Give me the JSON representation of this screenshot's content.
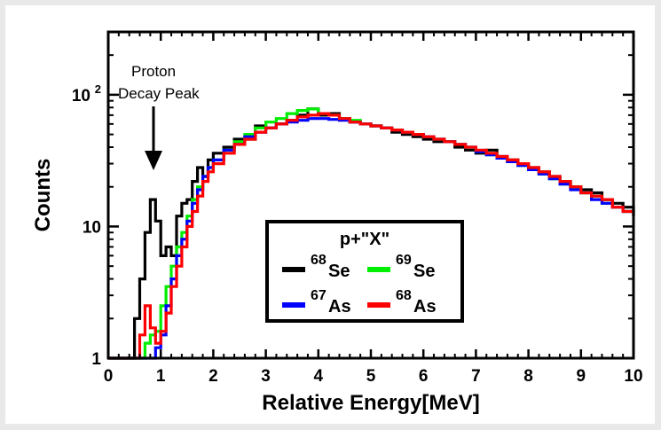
{
  "chart_data": {
    "type": "line",
    "xlabel": "Relative Energy[MeV]",
    "ylabel": "Counts",
    "xlim": [
      0,
      10
    ],
    "ylim": [
      1,
      300
    ],
    "yscale": "log",
    "xticks": [
      "0",
      "1",
      "2",
      "3",
      "4",
      "5",
      "6",
      "7",
      "8",
      "9",
      "10"
    ],
    "yticks": [
      {
        "value": 1,
        "base": "1",
        "exp": ""
      },
      {
        "value": 10,
        "base": "10",
        "exp": ""
      },
      {
        "value": 100,
        "base": "10",
        "exp": "2"
      }
    ],
    "grid": false,
    "annotation": {
      "lines": [
        "Proton",
        "Decay Peak"
      ],
      "x": 0.8,
      "y": 15
    },
    "legend": {
      "title": "p+\"X\"",
      "placement": "center-right"
    },
    "series": [
      {
        "name": "68Se",
        "mass": "68",
        "element": "Se",
        "color": "#000000",
        "x": [
          0.0,
          0.1,
          0.2,
          0.3,
          0.4,
          0.5,
          0.6,
          0.7,
          0.8,
          0.9,
          1.0,
          1.1,
          1.2,
          1.3,
          1.4,
          1.5,
          1.6,
          1.7,
          1.8,
          1.9,
          2.0,
          2.2,
          2.4,
          2.6,
          2.8,
          3.0,
          3.2,
          3.4,
          3.6,
          3.8,
          4.0,
          4.2,
          4.4,
          4.6,
          4.8,
          5.0,
          5.2,
          5.4,
          5.6,
          5.8,
          6.0,
          6.2,
          6.4,
          6.6,
          6.8,
          7.0,
          7.2,
          7.4,
          7.6,
          7.8,
          8.0,
          8.2,
          8.4,
          8.6,
          8.8,
          9.0,
          9.2,
          9.4,
          9.6,
          9.8,
          10.0
        ],
        "y": [
          1,
          1,
          1,
          1,
          1,
          2,
          4,
          9,
          16,
          11,
          6,
          7,
          6,
          12,
          15,
          16,
          22,
          28,
          24,
          32,
          36,
          40,
          46,
          46,
          58,
          56,
          60,
          64,
          70,
          78,
          70,
          72,
          66,
          62,
          60,
          58,
          56,
          52,
          50,
          48,
          46,
          44,
          44,
          40,
          38,
          36,
          38,
          34,
          32,
          30,
          28,
          26,
          24,
          22,
          20,
          19,
          18,
          16,
          15,
          14,
          13
        ]
      },
      {
        "name": "69Se",
        "mass": "69",
        "element": "Se",
        "color": "#00ee00",
        "x": [
          0.0,
          0.2,
          0.4,
          0.6,
          0.7,
          0.8,
          0.9,
          1.0,
          1.1,
          1.2,
          1.3,
          1.4,
          1.5,
          1.6,
          1.7,
          1.8,
          1.9,
          2.0,
          2.2,
          2.4,
          2.6,
          2.8,
          3.0,
          3.2,
          3.4,
          3.6,
          3.8,
          4.0,
          4.2,
          4.4,
          4.6,
          4.8,
          5.0,
          5.2,
          5.4,
          5.6,
          5.8,
          6.0,
          6.2,
          6.4,
          6.6,
          6.8,
          7.0,
          7.2,
          7.4,
          7.6,
          7.8,
          8.0,
          8.2,
          8.4,
          8.6,
          8.8,
          9.0,
          9.2,
          9.4,
          9.6,
          9.8,
          10.0
        ],
        "y": [
          1,
          1,
          1,
          1,
          1.3,
          1.5,
          1.6,
          2.5,
          3.5,
          5,
          7,
          9,
          12,
          16,
          20,
          24,
          28,
          32,
          38,
          44,
          50,
          56,
          62,
          66,
          72,
          76,
          78,
          72,
          70,
          66,
          64,
          60,
          58,
          56,
          54,
          52,
          50,
          48,
          46,
          44,
          42,
          40,
          37,
          35,
          33,
          31,
          29,
          27,
          25,
          23,
          21,
          20,
          18,
          17,
          15,
          14,
          13,
          12
        ]
      },
      {
        "name": "67As",
        "mass": "67",
        "element": "As",
        "color": "#0000ff",
        "x": [
          0.0,
          0.2,
          0.4,
          0.6,
          0.7,
          0.8,
          0.9,
          1.0,
          1.1,
          1.2,
          1.3,
          1.4,
          1.5,
          1.6,
          1.7,
          1.8,
          1.9,
          2.0,
          2.2,
          2.4,
          2.6,
          2.8,
          3.0,
          3.2,
          3.4,
          3.6,
          3.8,
          4.0,
          4.2,
          4.4,
          4.6,
          4.8,
          5.0,
          5.2,
          5.4,
          5.6,
          5.8,
          6.0,
          6.2,
          6.4,
          6.6,
          6.8,
          7.0,
          7.2,
          7.4,
          7.6,
          7.8,
          8.0,
          8.2,
          8.4,
          8.6,
          8.8,
          9.0,
          9.2,
          9.4,
          9.6,
          9.8,
          10.0
        ],
        "y": [
          1,
          1,
          1,
          1,
          1,
          1,
          1.2,
          1.5,
          2.5,
          4,
          6,
          8,
          11,
          15,
          19,
          24,
          28,
          32,
          38,
          42,
          48,
          52,
          56,
          60,
          62,
          64,
          66,
          66,
          65,
          64,
          62,
          60,
          58,
          56,
          54,
          52,
          50,
          48,
          46,
          44,
          42,
          40,
          37,
          35,
          33,
          31,
          29,
          27,
          25,
          23,
          21,
          19,
          18,
          16,
          15,
          14,
          13,
          12
        ]
      },
      {
        "name": "68As",
        "mass": "68",
        "element": "As",
        "color": "#ff0000",
        "x": [
          0.0,
          0.2,
          0.4,
          0.6,
          0.7,
          0.8,
          0.9,
          1.0,
          1.1,
          1.2,
          1.3,
          1.4,
          1.5,
          1.6,
          1.7,
          1.8,
          1.9,
          2.0,
          2.2,
          2.4,
          2.6,
          2.8,
          3.0,
          3.2,
          3.4,
          3.6,
          3.8,
          4.0,
          4.2,
          4.4,
          4.6,
          4.8,
          5.0,
          5.2,
          5.4,
          5.6,
          5.8,
          6.0,
          6.2,
          6.4,
          6.6,
          6.8,
          7.0,
          7.2,
          7.4,
          7.6,
          7.8,
          8.0,
          8.2,
          8.4,
          8.6,
          8.8,
          9.0,
          9.2,
          9.4,
          9.6,
          9.8,
          10.0
        ],
        "y": [
          1,
          1,
          1,
          1.5,
          2.5,
          1.7,
          1.3,
          1.6,
          2.2,
          3.5,
          5,
          7,
          10,
          13,
          17,
          22,
          26,
          30,
          36,
          42,
          46,
          52,
          56,
          60,
          64,
          68,
          70,
          72,
          70,
          66,
          62,
          60,
          58,
          56,
          54,
          52,
          50,
          48,
          46,
          44,
          42,
          40,
          38,
          36,
          34,
          32,
          30,
          28,
          26,
          24,
          22,
          20,
          18,
          17,
          16,
          14,
          13,
          12
        ]
      }
    ]
  }
}
